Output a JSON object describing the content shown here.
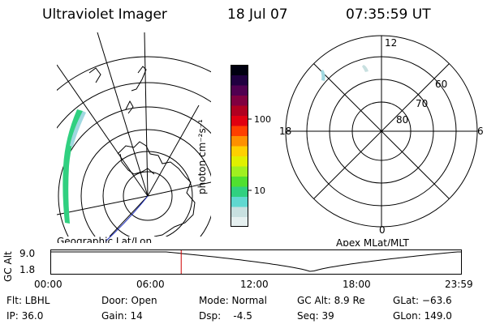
{
  "header": {
    "instrument": "Ultraviolet Imager",
    "date": "18 Jul 07",
    "time": "07:35:59 UT"
  },
  "colorbar": {
    "unit_label": "photon cm⁻²s⁻¹",
    "ticks": [
      "100",
      "10"
    ],
    "colors": [
      "#e6f0f0",
      "#c8e0e0",
      "#60d8d0",
      "#30d080",
      "#50e030",
      "#a0f020",
      "#e0f000",
      "#ffd000",
      "#ff9000",
      "#ff4000",
      "#e00010",
      "#b00020",
      "#800040",
      "#500050",
      "#200040",
      "#000010"
    ]
  },
  "left_map": {
    "label": "Geographic Lat/Lon"
  },
  "right_map": {
    "label": "Apex MLat/MLT",
    "mlt_labels": {
      "top": "12",
      "left": "18",
      "right": "6",
      "bottom": "0"
    },
    "lat_labels": [
      "60",
      "70",
      "80"
    ]
  },
  "altitude_plot": {
    "ylabel": "GC Alt",
    "yticks": [
      "9.0",
      "1.8"
    ],
    "xticks": [
      "00:00",
      "06:00",
      "12:00",
      "18:00",
      "23:59"
    ],
    "current_time_hours": 7.6
  },
  "info": {
    "flt": "Flt: LBHL",
    "ip": "IP: 36.0",
    "door": "Door: Open",
    "gain": "Gain: 14",
    "mode": "Mode: Normal",
    "dsp": "Dsp:    -4.5",
    "gc_alt": "GC Alt: 8.9 Re",
    "seq": "Seq: 39",
    "glat": "GLat: −63.6",
    "glon": "GLon: 149.0"
  }
}
